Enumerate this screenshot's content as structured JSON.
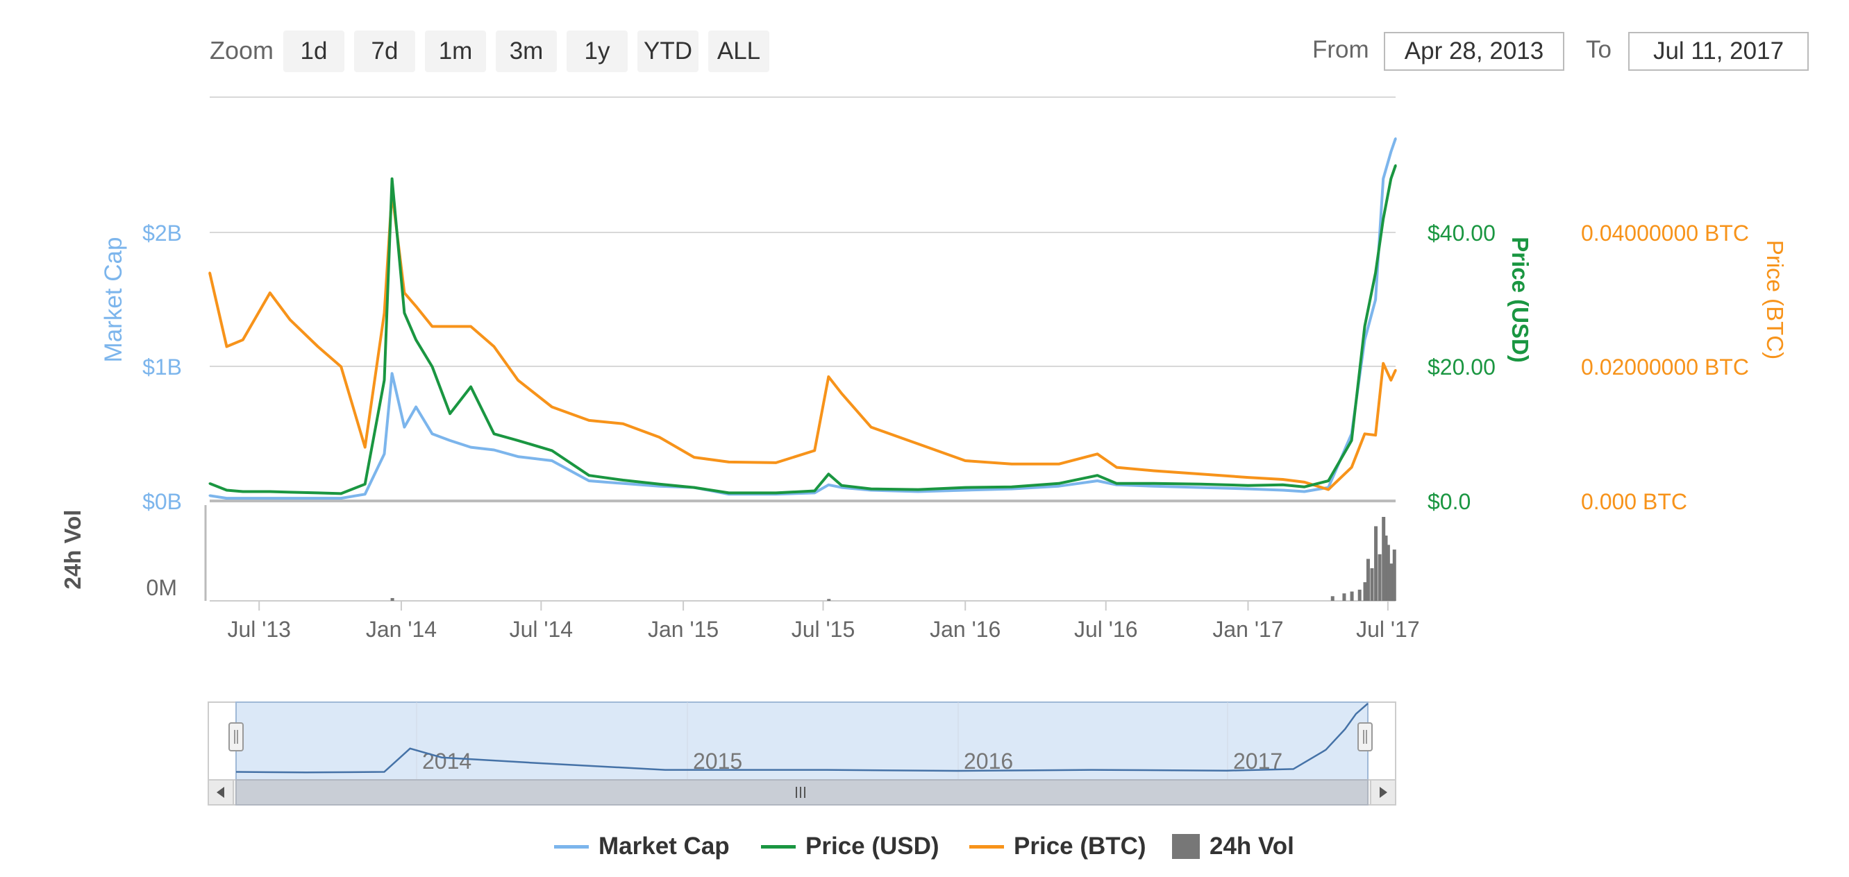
{
  "toolbar": {
    "zoom_label": "Zoom",
    "buttons": [
      "1d",
      "7d",
      "1m",
      "3m",
      "1y",
      "YTD",
      "ALL"
    ],
    "from_label": "From",
    "from_value": "Apr 28, 2013",
    "to_label": "To",
    "to_value": "Jul 11, 2017"
  },
  "colors": {
    "market_cap": "#7cb5ec",
    "price_usd": "#1a9641",
    "price_btc": "#f7931a",
    "volume": "#777777"
  },
  "chart_data": {
    "type": "line",
    "x": [
      "2013-04-28",
      "2013-05-20",
      "2013-06-10",
      "2013-07-15",
      "2013-08-10",
      "2013-09-15",
      "2013-10-15",
      "2013-11-15",
      "2013-12-10",
      "2013-12-20",
      "2014-01-05",
      "2014-01-20",
      "2014-02-10",
      "2014-03-05",
      "2014-04-01",
      "2014-05-01",
      "2014-06-01",
      "2014-07-15",
      "2014-09-01",
      "2014-10-15",
      "2014-12-01",
      "2015-01-15",
      "2015-03-01",
      "2015-05-01",
      "2015-06-20",
      "2015-07-08",
      "2015-07-25",
      "2015-09-01",
      "2015-11-01",
      "2016-01-01",
      "2016-03-01",
      "2016-05-01",
      "2016-06-20",
      "2016-07-15",
      "2016-09-01",
      "2016-11-01",
      "2017-01-01",
      "2017-02-15",
      "2017-03-15",
      "2017-04-15",
      "2017-05-15",
      "2017-06-01",
      "2017-06-15",
      "2017-06-25",
      "2017-07-05",
      "2017-07-11"
    ],
    "series": [
      {
        "name": "Market Cap",
        "axis": "Market Cap",
        "values": [
          0.04,
          0.02,
          0.02,
          0.02,
          0.02,
          0.02,
          0.02,
          0.05,
          0.35,
          0.95,
          0.55,
          0.7,
          0.5,
          0.45,
          0.4,
          0.38,
          0.33,
          0.3,
          0.15,
          0.13,
          0.11,
          0.1,
          0.05,
          0.05,
          0.06,
          0.12,
          0.1,
          0.08,
          0.07,
          0.08,
          0.09,
          0.11,
          0.15,
          0.12,
          0.11,
          0.1,
          0.09,
          0.08,
          0.07,
          0.1,
          0.5,
          1.2,
          1.5,
          2.4,
          2.6,
          2.7
        ]
      },
      {
        "name": "Price (USD)",
        "axis": "Price (USD)",
        "values": [
          2.6,
          1.6,
          1.4,
          1.4,
          1.3,
          1.2,
          1.1,
          2.5,
          18,
          48,
          28,
          24,
          20,
          13,
          17,
          10,
          9,
          7.5,
          3.8,
          3.1,
          2.5,
          2,
          1.2,
          1.2,
          1.5,
          4,
          2.3,
          1.8,
          1.7,
          2,
          2.1,
          2.6,
          3.8,
          2.6,
          2.6,
          2.5,
          2.3,
          2.4,
          2.1,
          3,
          9,
          26,
          34,
          42,
          48,
          50
        ]
      },
      {
        "name": "Price (BTC)",
        "axis": "Price (BTC)",
        "values": [
          0.034,
          0.023,
          0.024,
          0.031,
          0.027,
          0.023,
          0.02,
          0.008,
          0.028,
          0.046,
          0.031,
          0.029,
          0.026,
          0.026,
          0.026,
          0.023,
          0.018,
          0.014,
          0.012,
          0.0115,
          0.0095,
          0.0065,
          0.0058,
          0.0057,
          0.0075,
          0.0185,
          0.016,
          0.011,
          0.0085,
          0.006,
          0.0055,
          0.0055,
          0.007,
          0.005,
          0.0045,
          0.004,
          0.0035,
          0.0032,
          0.0028,
          0.0017,
          0.005,
          0.01,
          0.0098,
          0.0205,
          0.018,
          0.0195
        ]
      }
    ],
    "volume": {
      "name": "24h Vol",
      "x": [
        "2013-06-01",
        "2013-12-20",
        "2015-07-08",
        "2017-04-20",
        "2017-05-05",
        "2017-05-15",
        "2017-05-25",
        "2017-06-01",
        "2017-06-05",
        "2017-06-10",
        "2017-06-15",
        "2017-06-20",
        "2017-06-25",
        "2017-06-28",
        "2017-07-01",
        "2017-07-05",
        "2017-07-09"
      ],
      "values": [
        0,
        3,
        2,
        5,
        8,
        10,
        12,
        20,
        45,
        35,
        80,
        50,
        90,
        70,
        60,
        40,
        55
      ]
    },
    "navigator": {
      "labels": [
        "2014",
        "2015",
        "2016",
        "2017"
      ],
      "x": [
        "2013-04-28",
        "2013-08-01",
        "2013-11-15",
        "2013-12-20",
        "2014-02-01",
        "2014-06-01",
        "2014-12-01",
        "2015-07-08",
        "2016-01-01",
        "2016-07-01",
        "2017-01-01",
        "2017-04-01",
        "2017-05-15",
        "2017-06-10",
        "2017-06-25",
        "2017-07-11"
      ],
      "values": [
        0.04,
        0.02,
        0.04,
        0.95,
        0.6,
        0.4,
        0.12,
        0.12,
        0.08,
        0.12,
        0.09,
        0.15,
        0.9,
        1.7,
        2.3,
        2.7
      ]
    },
    "x_ticks": [
      "Jul '13",
      "Jan '14",
      "Jul '14",
      "Jan '15",
      "Jul '15",
      "Jan '16",
      "Jul '16",
      "Jan '17",
      "Jul '17"
    ],
    "axes": {
      "market_cap": {
        "label": "Market Cap",
        "ticks": [
          "$0B",
          "$1B",
          "$2B"
        ],
        "ylim": [
          0,
          2.0
        ]
      },
      "price_usd": {
        "label": "Price (USD)",
        "ticks": [
          "$0.0",
          "$20.00",
          "$40.00"
        ],
        "ylim": [
          0,
          40
        ]
      },
      "price_btc": {
        "label": "Price (BTC)",
        "ticks": [
          "0.000 BTC",
          "0.02000000 BTC",
          "0.04000000 BTC"
        ],
        "ylim": [
          0,
          0.04
        ]
      },
      "volume": {
        "label": "24h Vol",
        "ticks": [
          "0M"
        ]
      }
    },
    "legend": {
      "position": "bottom-center",
      "items": [
        "Market Cap",
        "Price (USD)",
        "Price (BTC)",
        "24h Vol"
      ]
    },
    "grid": true
  }
}
